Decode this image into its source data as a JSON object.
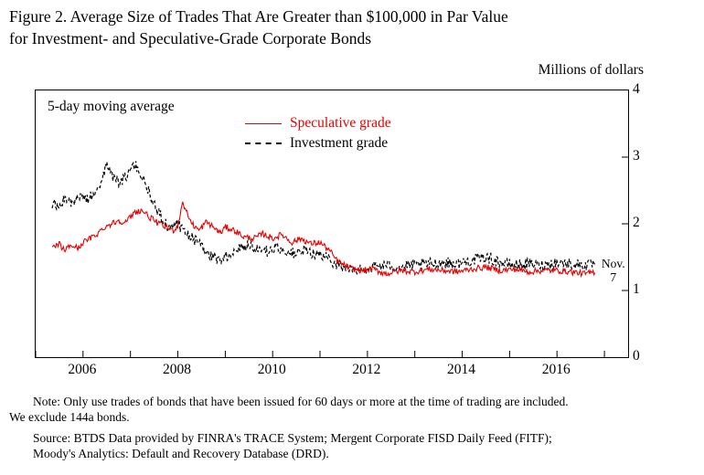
{
  "figure": {
    "title_line1": "Figure 2.  Average Size of Trades That Are Greater than $100,000 in Par Value",
    "title_line2": "for Investment- and Speculative-Grade Corporate Bonds",
    "unit_label": "Millions of dollars",
    "annotation_moving_average": "5-day moving average",
    "end_label_line1": "Nov.",
    "end_label_line2": "7",
    "note_line1": "Note:  Only use trades of bonds that have been issued for 60 days or more at the time of trading are included.",
    "note_line2": "We exclude 144a bonds.",
    "source_line1": "Source:  BTDS Data provided by FINRA's TRACE System; Mergent Corporate FISD Daily Feed (FITF);",
    "source_line2": "Moody's Analytics:  Default and Recovery Database (DRD)."
  },
  "chart_data": {
    "type": "line",
    "title": "Average Size of Trades That Are Greater than $100,000 in Par Value for Investment- and Speculative-Grade Corporate Bonds",
    "xlabel": "",
    "ylabel": "Millions of dollars",
    "xlim": [
      2005.0,
      2017.5
    ],
    "ylim": [
      0,
      4
    ],
    "yticks": [
      0,
      1,
      2,
      3,
      4
    ],
    "xtick_labels": [
      2006,
      2008,
      2010,
      2012,
      2014,
      2016
    ],
    "grid": false,
    "legend_position": "upper-center-inside",
    "annotations": [
      "5-day moving average",
      "Nov. 7"
    ],
    "legend": [
      {
        "name": "Speculative grade",
        "color": "#e60000",
        "style": "solid"
      },
      {
        "name": "Investment grade",
        "color": "#000000",
        "style": "dashed"
      }
    ],
    "series": [
      {
        "name": "Speculative grade",
        "color": "#e60000",
        "dash": null,
        "width": 1.1,
        "noise": 0.045,
        "points": [
          [
            2005.35,
            1.62
          ],
          [
            2005.5,
            1.7
          ],
          [
            2005.6,
            1.6
          ],
          [
            2005.75,
            1.68
          ],
          [
            2005.9,
            1.63
          ],
          [
            2006.0,
            1.72
          ],
          [
            2006.15,
            1.78
          ],
          [
            2006.3,
            1.85
          ],
          [
            2006.45,
            1.95
          ],
          [
            2006.6,
            2.0
          ],
          [
            2006.75,
            2.05
          ],
          [
            2006.9,
            2.02
          ],
          [
            2007.0,
            2.1
          ],
          [
            2007.1,
            2.18
          ],
          [
            2007.25,
            2.2
          ],
          [
            2007.4,
            2.1
          ],
          [
            2007.5,
            2.05
          ],
          [
            2007.6,
            2.0
          ],
          [
            2007.75,
            1.95
          ],
          [
            2007.9,
            1.9
          ],
          [
            2008.0,
            1.97
          ],
          [
            2008.1,
            2.33
          ],
          [
            2008.2,
            2.15
          ],
          [
            2008.3,
            2.0
          ],
          [
            2008.45,
            1.9
          ],
          [
            2008.6,
            2.03
          ],
          [
            2008.75,
            1.95
          ],
          [
            2008.9,
            1.86
          ],
          [
            2009.0,
            1.95
          ],
          [
            2009.2,
            1.9
          ],
          [
            2009.4,
            1.8
          ],
          [
            2009.6,
            1.78
          ],
          [
            2009.8,
            1.85
          ],
          [
            2010.0,
            1.78
          ],
          [
            2010.2,
            1.84
          ],
          [
            2010.4,
            1.72
          ],
          [
            2010.6,
            1.78
          ],
          [
            2010.8,
            1.7
          ],
          [
            2011.0,
            1.72
          ],
          [
            2011.2,
            1.6
          ],
          [
            2011.35,
            1.45
          ],
          [
            2011.5,
            1.38
          ],
          [
            2011.7,
            1.32
          ],
          [
            2011.9,
            1.3
          ],
          [
            2012.1,
            1.32
          ],
          [
            2012.4,
            1.25
          ],
          [
            2012.7,
            1.3
          ],
          [
            2013.0,
            1.28
          ],
          [
            2013.3,
            1.32
          ],
          [
            2013.6,
            1.3
          ],
          [
            2013.9,
            1.28
          ],
          [
            2014.2,
            1.32
          ],
          [
            2014.5,
            1.35
          ],
          [
            2014.8,
            1.3
          ],
          [
            2015.1,
            1.32
          ],
          [
            2015.4,
            1.28
          ],
          [
            2015.7,
            1.3
          ],
          [
            2016.0,
            1.3
          ],
          [
            2016.3,
            1.28
          ],
          [
            2016.6,
            1.25
          ],
          [
            2016.8,
            1.28
          ]
        ]
      },
      {
        "name": "Investment grade",
        "color": "#000000",
        "dash": "3.5 2.5",
        "width": 1.2,
        "noise": 0.085,
        "points": [
          [
            2005.35,
            2.3
          ],
          [
            2005.5,
            2.25
          ],
          [
            2005.65,
            2.4
          ],
          [
            2005.8,
            2.3
          ],
          [
            2005.95,
            2.45
          ],
          [
            2006.1,
            2.35
          ],
          [
            2006.25,
            2.5
          ],
          [
            2006.4,
            2.65
          ],
          [
            2006.5,
            2.9
          ],
          [
            2006.6,
            2.75
          ],
          [
            2006.75,
            2.6
          ],
          [
            2006.9,
            2.7
          ],
          [
            2007.0,
            2.8
          ],
          [
            2007.1,
            2.88
          ],
          [
            2007.2,
            2.75
          ],
          [
            2007.35,
            2.55
          ],
          [
            2007.5,
            2.3
          ],
          [
            2007.65,
            2.1
          ],
          [
            2007.8,
            1.95
          ],
          [
            2007.95,
            2.05
          ],
          [
            2008.1,
            1.9
          ],
          [
            2008.3,
            1.8
          ],
          [
            2008.5,
            1.65
          ],
          [
            2008.7,
            1.52
          ],
          [
            2008.9,
            1.46
          ],
          [
            2009.1,
            1.55
          ],
          [
            2009.3,
            1.65
          ],
          [
            2009.5,
            1.7
          ],
          [
            2009.7,
            1.62
          ],
          [
            2009.9,
            1.58
          ],
          [
            2010.1,
            1.65
          ],
          [
            2010.3,
            1.58
          ],
          [
            2010.5,
            1.55
          ],
          [
            2010.7,
            1.6
          ],
          [
            2010.9,
            1.55
          ],
          [
            2011.1,
            1.5
          ],
          [
            2011.3,
            1.42
          ],
          [
            2011.5,
            1.35
          ],
          [
            2011.7,
            1.3
          ],
          [
            2011.9,
            1.32
          ],
          [
            2012.1,
            1.35
          ],
          [
            2012.4,
            1.38
          ],
          [
            2012.7,
            1.35
          ],
          [
            2013.0,
            1.38
          ],
          [
            2013.3,
            1.4
          ],
          [
            2013.6,
            1.42
          ],
          [
            2013.9,
            1.4
          ],
          [
            2014.2,
            1.45
          ],
          [
            2014.5,
            1.5
          ],
          [
            2014.8,
            1.42
          ],
          [
            2015.1,
            1.38
          ],
          [
            2015.4,
            1.4
          ],
          [
            2015.7,
            1.38
          ],
          [
            2016.0,
            1.42
          ],
          [
            2016.3,
            1.4
          ],
          [
            2016.6,
            1.38
          ],
          [
            2016.8,
            1.4
          ]
        ]
      }
    ]
  }
}
